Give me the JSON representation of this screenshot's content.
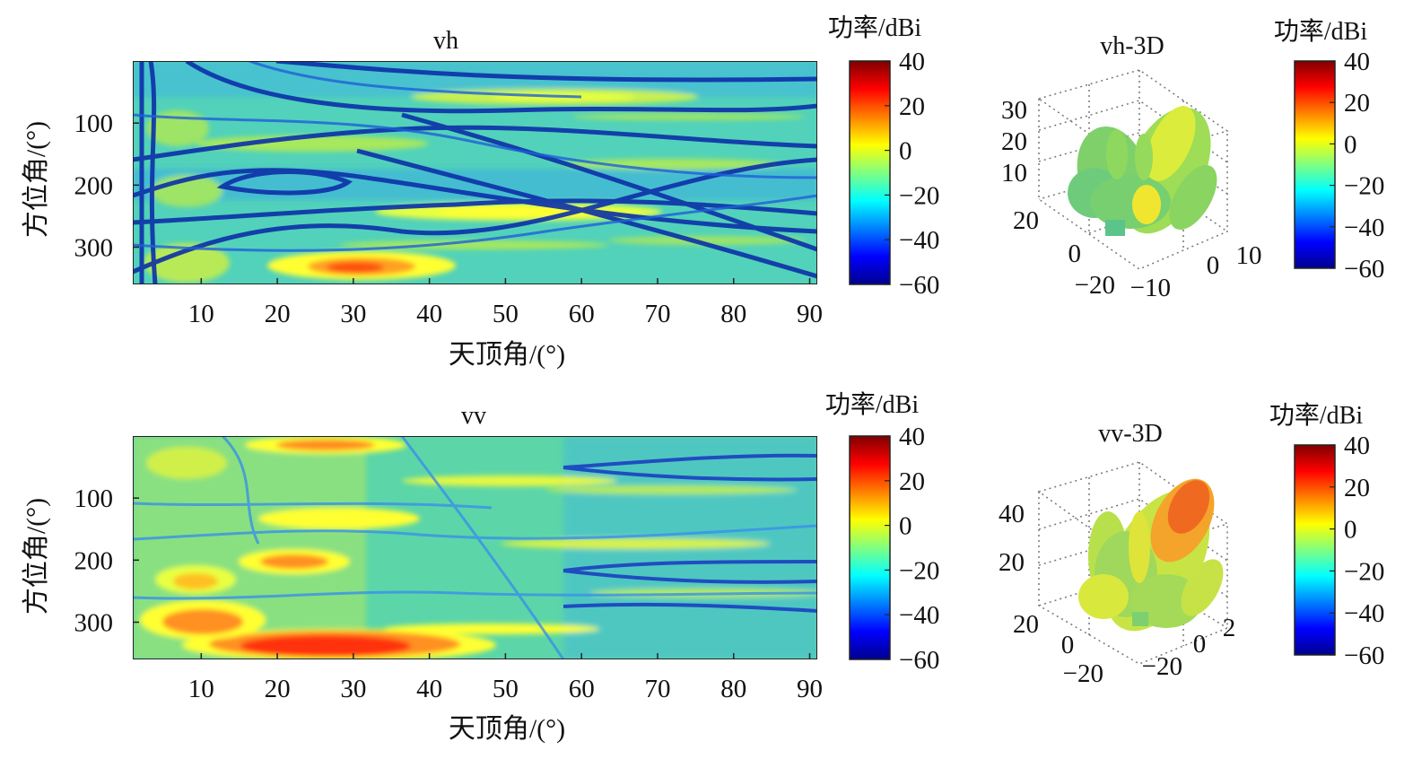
{
  "colorscale": [
    "#00008f",
    "#0000ff",
    "#0080ff",
    "#00ffff",
    "#80ff80",
    "#ffff00",
    "#ff8000",
    "#ff0000",
    "#800000"
  ],
  "chart_data": [
    {
      "type": "heatmap",
      "title": "vh",
      "xlabel": "天顶角/(°)",
      "ylabel": "方位角/(°)",
      "xlim": [
        1,
        91
      ],
      "ylim": [
        0,
        360
      ],
      "x_ticks": [
        10,
        20,
        30,
        40,
        50,
        60,
        70,
        80,
        90
      ],
      "y_ticks": [
        100,
        200,
        300
      ],
      "colorbar": {
        "label": "功率/dBi",
        "min": -60,
        "max": 40,
        "ticks": [
          40,
          20,
          0,
          -20,
          -40,
          -60
        ]
      },
      "hotspots": [
        {
          "zenith": 28,
          "azimuth": 335,
          "power_dbi": 18
        },
        {
          "zenith": 45,
          "azimuth": 250,
          "power_dbi": 3
        },
        {
          "zenith": 50,
          "azimuth": 60,
          "power_dbi": -3
        },
        {
          "zenith": 22,
          "azimuth": 40,
          "power_dbi": -8
        },
        {
          "zenith": 8,
          "azimuth": 310,
          "power_dbi": -8
        }
      ],
      "power_range_dbi": [
        -60,
        20
      ]
    },
    {
      "type": "surface3d",
      "title": "vh-3D",
      "z_ticks": [
        30,
        20,
        10
      ],
      "x_ticks": [
        20,
        0,
        -20
      ],
      "y_ticks": [
        -10,
        0,
        10
      ],
      "colorbar": {
        "label": "功率/dBi",
        "min": -60,
        "max": 40,
        "ticks": [
          40,
          20,
          0,
          -20,
          -40,
          -60
        ]
      }
    },
    {
      "type": "heatmap",
      "title": "vv",
      "xlabel": "天顶角/(°)",
      "ylabel": "方位角/(°)",
      "xlim": [
        1,
        91
      ],
      "ylim": [
        0,
        360
      ],
      "x_ticks": [
        10,
        20,
        30,
        40,
        50,
        60,
        70,
        80,
        90
      ],
      "y_ticks": [
        100,
        200,
        300
      ],
      "colorbar": {
        "label": "功率/dBi",
        "min": -60,
        "max": 40,
        "ticks": [
          40,
          20,
          0,
          -20,
          -40,
          -60
        ]
      },
      "hotspots": [
        {
          "zenith": 28,
          "azimuth": 345,
          "power_dbi": 30
        },
        {
          "zenith": 10,
          "azimuth": 305,
          "power_dbi": 22
        },
        {
          "zenith": 25,
          "azimuth": 200,
          "power_dbi": 12
        },
        {
          "zenith": 30,
          "azimuth": 15,
          "power_dbi": 12
        },
        {
          "zenith": 8,
          "azimuth": 240,
          "power_dbi": 10
        },
        {
          "zenith": 30,
          "azimuth": 135,
          "power_dbi": 5
        }
      ],
      "power_range_dbi": [
        -60,
        32
      ]
    },
    {
      "type": "surface3d",
      "title": "vv-3D",
      "z_ticks": [
        40,
        20
      ],
      "x_ticks": [
        20,
        0,
        -20
      ],
      "y_ticks": [
        -20,
        0,
        2
      ],
      "colorbar": {
        "label": "功率/dBi",
        "min": -60,
        "max": 40,
        "ticks": [
          40,
          20,
          0,
          -20,
          -40,
          -60
        ]
      }
    }
  ]
}
